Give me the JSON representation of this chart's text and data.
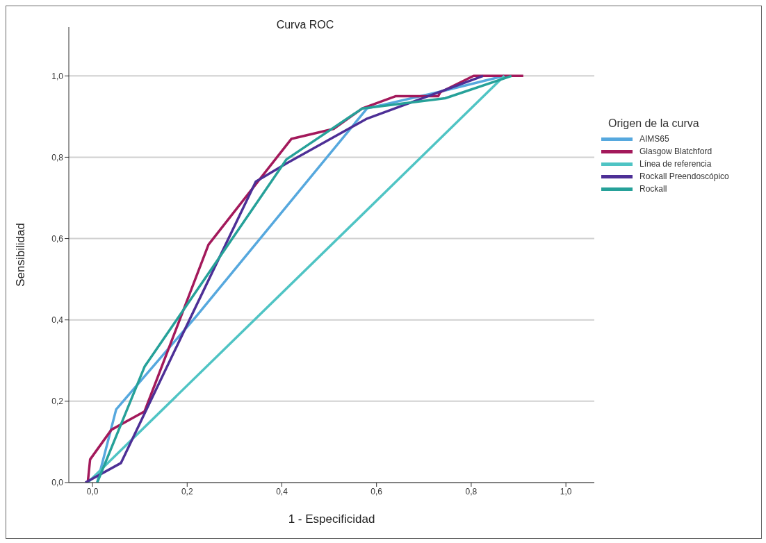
{
  "chart_data": {
    "type": "line",
    "title": "Curva ROC",
    "xlabel": "1 - Especificidad",
    "ylabel": "Sensibilidad",
    "legend_title": "Origen de la curva",
    "legend": "right",
    "grid": "y",
    "marker": "none",
    "line_style": "solid",
    "xlim": [
      -0.05,
      1.06
    ],
    "ylim": [
      0,
      1.12
    ],
    "xticks": [
      {
        "value": 0,
        "label": "0,0"
      },
      {
        "value": 0.2,
        "label": "0,2"
      },
      {
        "value": 0.4,
        "label": "0,4"
      },
      {
        "value": 0.6,
        "label": "0,6"
      },
      {
        "value": 0.8,
        "label": "0,8"
      },
      {
        "value": 1,
        "label": "1,0"
      }
    ],
    "yticks": [
      {
        "value": 0,
        "label": "0,0"
      },
      {
        "value": 0.2,
        "label": "0,2"
      },
      {
        "value": 0.4,
        "label": "0,4"
      },
      {
        "value": 0.6,
        "label": "0,6"
      },
      {
        "value": 0.8,
        "label": "0,8"
      },
      {
        "value": 1,
        "label": "1,0"
      }
    ],
    "series": [
      {
        "name": "AIMS65",
        "color": "#56a8de",
        "x": [
          0.01,
          0.05,
          0.22,
          0.58,
          0.73,
          0.87
        ],
        "values": [
          0,
          0.18,
          0.41,
          0.92,
          0.96,
          1.0
        ]
      },
      {
        "name": "Glasgow Blatchford",
        "color": "#a3195b",
        "x": [
          -0.01,
          -0.005,
          0.04,
          0.11,
          0.245,
          0.42,
          0.51,
          0.57,
          0.64,
          0.73,
          0.735,
          0.805,
          0.91
        ],
        "values": [
          0,
          0.057,
          0.13,
          0.175,
          0.585,
          0.845,
          0.87,
          0.92,
          0.95,
          0.95,
          0.96,
          1.0,
          1.0
        ]
      },
      {
        "name": "Línea de referencia",
        "color": "#4fc4c4",
        "x": [
          -0.01,
          0.87
        ],
        "values": [
          0,
          1.0
        ]
      },
      {
        "name": "Rockall Preendoscópico",
        "color": "#4d2f96",
        "x": [
          -0.015,
          0.06,
          0.11,
          0.345,
          0.41,
          0.58,
          0.825
        ],
        "values": [
          0,
          0.048,
          0.17,
          0.74,
          0.785,
          0.895,
          1.0
        ]
      },
      {
        "name": "Rockall",
        "color": "#26a199",
        "x": [
          0.01,
          0.11,
          0.41,
          0.57,
          0.745,
          0.885
        ],
        "values": [
          0,
          0.285,
          0.795,
          0.92,
          0.945,
          1.0
        ]
      }
    ]
  }
}
